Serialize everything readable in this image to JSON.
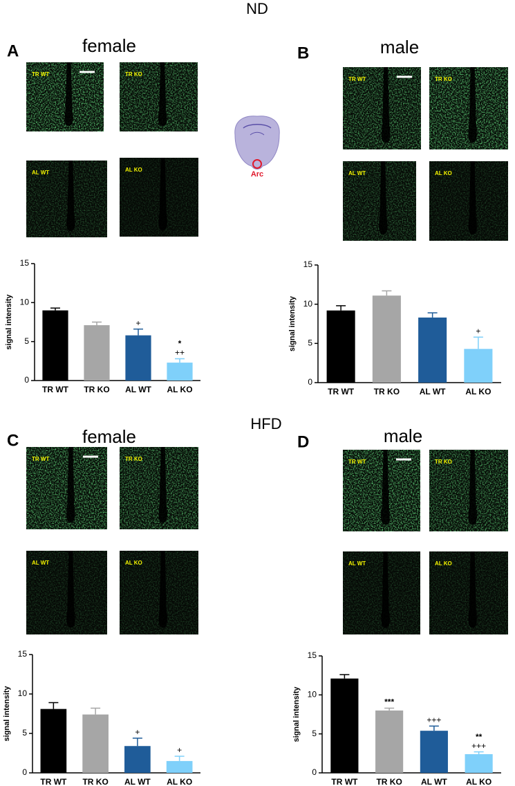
{
  "sections": [
    "ND",
    "HFD"
  ],
  "brain_label": "Arc",
  "chart_data": [
    {
      "type": "bar",
      "panel": "A",
      "title": "female",
      "image_labels": [
        "TR WT",
        "TR KO",
        "AL WT",
        "AL KO"
      ],
      "ylabel": "signal intensity",
      "categories": [
        "TR WT",
        "TR KO",
        "AL WT",
        "AL KO"
      ],
      "values": [
        9.0,
        7.1,
        5.8,
        2.3
      ],
      "errors": [
        0.3,
        0.4,
        0.8,
        0.5
      ],
      "colors": [
        "#000000",
        "#a6a6a6",
        "#1f5c99",
        "#7fd0fa"
      ],
      "annotations": [
        null,
        null,
        [
          "+"
        ],
        [
          "*",
          "++"
        ]
      ],
      "ylim": [
        0,
        15
      ],
      "yticks": [
        0,
        5,
        10,
        15
      ]
    },
    {
      "type": "bar",
      "panel": "B",
      "title": "male",
      "image_labels": [
        "TR WT",
        "TR KO",
        "AL WT",
        "AL KO"
      ],
      "ylabel": "signal intensity",
      "categories": [
        "TR WT",
        "TR KO",
        "AL WT",
        "AL KO"
      ],
      "values": [
        9.2,
        11.1,
        8.3,
        4.3
      ],
      "errors": [
        0.6,
        0.6,
        0.6,
        1.5
      ],
      "colors": [
        "#000000",
        "#a6a6a6",
        "#1f5c99",
        "#7fd0fa"
      ],
      "annotations": [
        null,
        null,
        null,
        [
          "+"
        ]
      ],
      "ylim": [
        0,
        15
      ],
      "yticks": [
        0,
        5,
        10,
        15
      ]
    },
    {
      "type": "bar",
      "panel": "C",
      "title": "female",
      "image_labels": [
        "TR WT",
        "TR KO",
        "AL WT",
        "AL KO"
      ],
      "ylabel": "signal intensity",
      "categories": [
        "TR WT",
        "TR KO",
        "AL WT",
        "AL KO"
      ],
      "values": [
        8.1,
        7.4,
        3.4,
        1.5
      ],
      "errors": [
        0.8,
        0.8,
        1.0,
        0.6
      ],
      "colors": [
        "#000000",
        "#a6a6a6",
        "#1f5c99",
        "#7fd0fa"
      ],
      "annotations": [
        null,
        null,
        [
          "+"
        ],
        [
          "+"
        ]
      ],
      "ylim": [
        0,
        15
      ],
      "yticks": [
        0,
        5,
        10,
        15
      ]
    },
    {
      "type": "bar",
      "panel": "D",
      "title": "male",
      "image_labels": [
        "TR WT",
        "TR KO",
        "AL WT",
        "AL KO"
      ],
      "ylabel": "signal intensity",
      "categories": [
        "TR WT",
        "TR KO",
        "AL WT",
        "AL KO"
      ],
      "values": [
        12.1,
        8.0,
        5.4,
        2.4
      ],
      "errors": [
        0.5,
        0.3,
        0.6,
        0.3
      ],
      "colors": [
        "#000000",
        "#a6a6a6",
        "#1f5c99",
        "#7fd0fa"
      ],
      "annotations": [
        null,
        [
          "***"
        ],
        [
          "+++"
        ],
        [
          "**",
          "+++"
        ]
      ],
      "ylim": [
        0,
        15
      ],
      "yticks": [
        0,
        5,
        10,
        15
      ]
    }
  ]
}
